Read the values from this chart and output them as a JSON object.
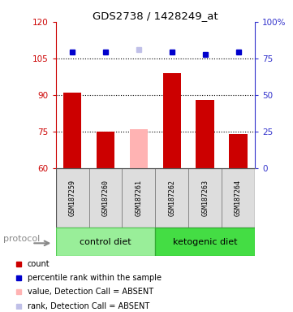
{
  "title": "GDS2738 / 1428249_at",
  "samples": [
    "GSM187259",
    "GSM187260",
    "GSM187261",
    "GSM187262",
    "GSM187263",
    "GSM187264"
  ],
  "bar_values": [
    91,
    75,
    76,
    99,
    88,
    74
  ],
  "bar_colors": [
    "#cc0000",
    "#cc0000",
    "#ffb3b3",
    "#cc0000",
    "#cc0000",
    "#cc0000"
  ],
  "dot_values": [
    107.5,
    107.5,
    108.5,
    107.5,
    106.5,
    107.5
  ],
  "dot_colors": [
    "#0000cc",
    "#0000cc",
    "#c0c0e8",
    "#0000cc",
    "#0000cc",
    "#0000cc"
  ],
  "ylim_left": [
    60,
    120
  ],
  "ylim_right": [
    0,
    100
  ],
  "yticks_left": [
    60,
    75,
    90,
    105,
    120
  ],
  "yticks_right": [
    0,
    25,
    50,
    75,
    100
  ],
  "ytick_labels_right": [
    "0",
    "25",
    "50",
    "75",
    "100%"
  ],
  "hlines": [
    75,
    90,
    105
  ],
  "groups": [
    {
      "label": "control diet",
      "color": "#99ee99",
      "dark_color": "#55cc55"
    },
    {
      "label": "ketogenic diet",
      "color": "#44dd44",
      "dark_color": "#33aa33"
    }
  ],
  "protocol_label": "protocol",
  "left_axis_color": "#cc0000",
  "right_axis_color": "#3333cc",
  "background_color": "#ffffff",
  "label_bg_color": "#dddddd",
  "bar_width": 0.55,
  "legend_items": [
    {
      "color": "#cc0000",
      "label": "count"
    },
    {
      "color": "#0000cc",
      "label": "percentile rank within the sample"
    },
    {
      "color": "#ffb3b3",
      "label": "value, Detection Call = ABSENT"
    },
    {
      "color": "#c0c0e8",
      "label": "rank, Detection Call = ABSENT"
    }
  ]
}
